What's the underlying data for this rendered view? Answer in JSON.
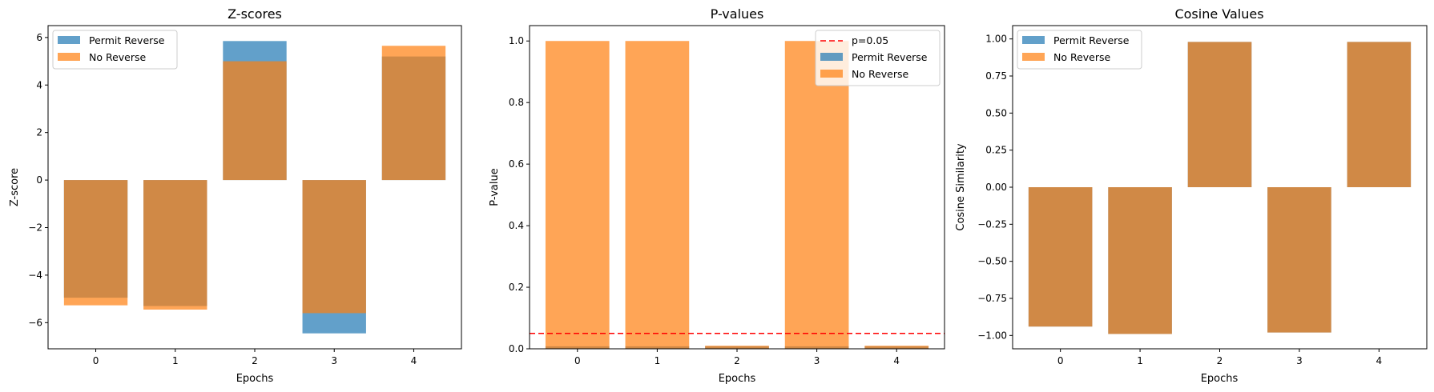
{
  "colors": {
    "permit": "#1f77b4",
    "no_reverse": "#ff7f0e",
    "threshold": "#ff0000"
  },
  "chart_data": [
    {
      "type": "bar",
      "title": "Z-scores",
      "xlabel": "Epochs",
      "ylabel": "Z-score",
      "categories": [
        "0",
        "1",
        "2",
        "3",
        "4"
      ],
      "series": [
        {
          "name": "Permit Reverse",
          "values": [
            -4.95,
            -5.3,
            5.85,
            -6.45,
            5.2
          ]
        },
        {
          "name": "No Reverse",
          "values": [
            -5.27,
            -5.45,
            5.0,
            -5.6,
            5.65
          ]
        }
      ],
      "ylim": [
        -7.1,
        6.5
      ],
      "yticks": [
        -6,
        -4,
        -2,
        0,
        2,
        4,
        6
      ],
      "ytick_labels": [
        "−6",
        "−4",
        "−2",
        "0",
        "2",
        "4",
        "6"
      ],
      "legend": "upper left",
      "grid": false
    },
    {
      "type": "bar",
      "title": "P-values",
      "xlabel": "Epochs",
      "ylabel": "P-value",
      "categories": [
        "0",
        "1",
        "2",
        "3",
        "4"
      ],
      "series": [
        {
          "name": "Permit Reverse",
          "values": [
            0.008,
            0.008,
            0.008,
            0.008,
            0.008
          ]
        },
        {
          "name": "No Reverse",
          "values": [
            1.0,
            1.0,
            0.01,
            1.0,
            0.01
          ]
        }
      ],
      "threshold": {
        "label": "p=0.05",
        "value": 0.05
      },
      "ylim": [
        0,
        1.05
      ],
      "yticks": [
        0.0,
        0.2,
        0.4,
        0.6,
        0.8,
        1.0
      ],
      "ytick_labels": [
        "0.0",
        "0.2",
        "0.4",
        "0.6",
        "0.8",
        "1.0"
      ],
      "legend": "upper right",
      "grid": false
    },
    {
      "type": "bar",
      "title": "Cosine Values",
      "xlabel": "Epochs",
      "ylabel": "Cosine Similarity",
      "categories": [
        "0",
        "1",
        "2",
        "3",
        "4"
      ],
      "series": [
        {
          "name": "Permit Reverse",
          "values": [
            -0.94,
            -0.99,
            0.98,
            -0.98,
            0.98
          ]
        },
        {
          "name": "No Reverse",
          "values": [
            -0.94,
            -0.99,
            0.98,
            -0.98,
            0.98
          ]
        }
      ],
      "ylim": [
        -1.09,
        1.09
      ],
      "yticks": [
        -1.0,
        -0.75,
        -0.5,
        -0.25,
        0.0,
        0.25,
        0.5,
        0.75,
        1.0
      ],
      "ytick_labels": [
        "−1.00",
        "−0.75",
        "−0.50",
        "−0.25",
        "0.00",
        "0.25",
        "0.50",
        "0.75",
        "1.00"
      ],
      "legend": "upper left",
      "grid": false
    }
  ]
}
